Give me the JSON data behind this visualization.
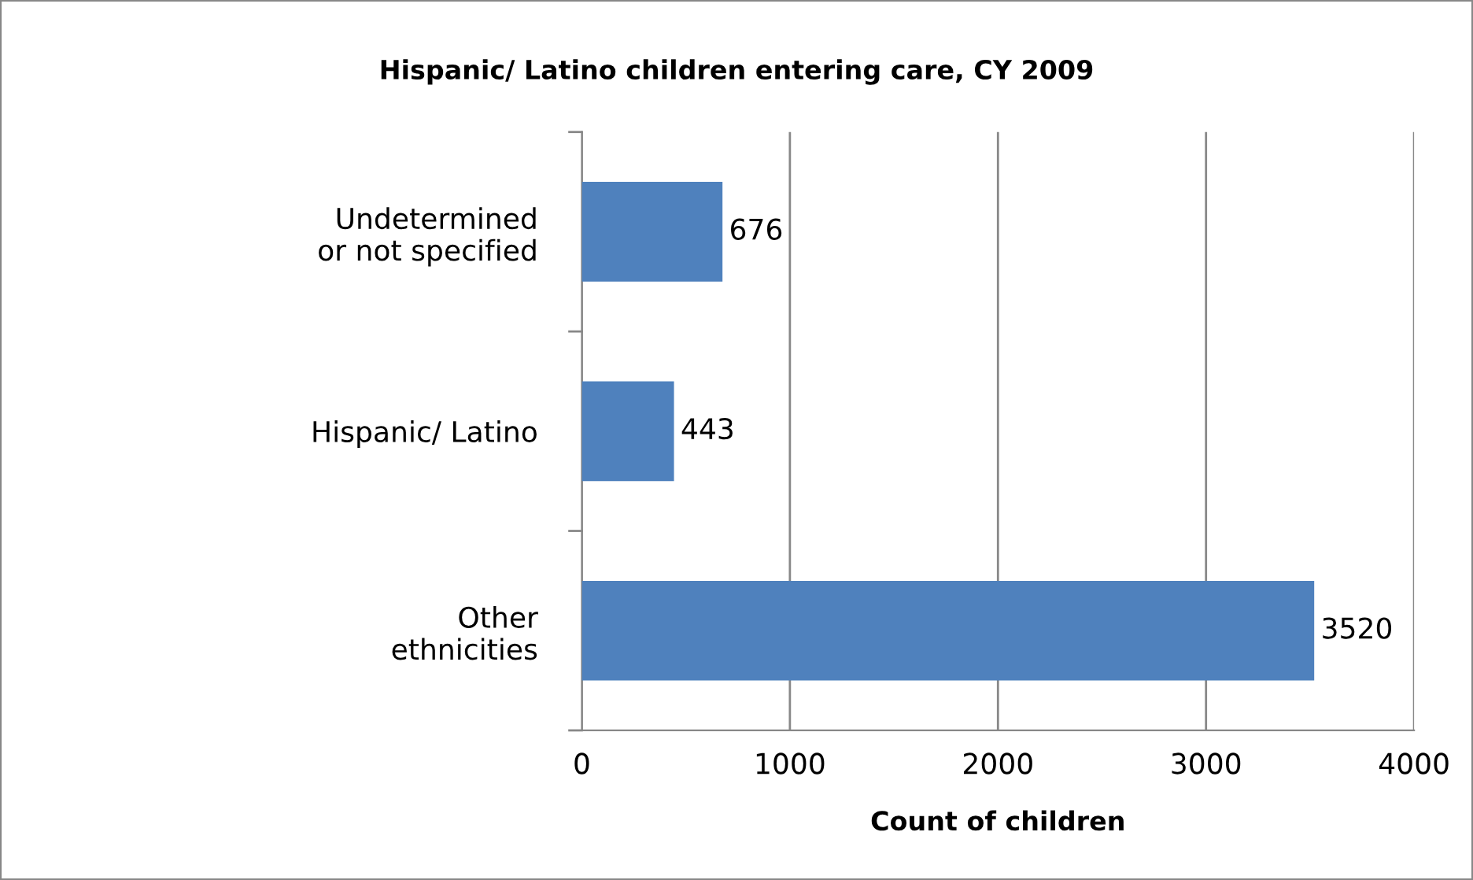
{
  "chart_data": {
    "type": "bar",
    "orientation": "horizontal",
    "title": "Hispanic/ Latino children entering care, CY 2009",
    "xlabel": "Count of children",
    "categories": [
      "Undetermined\nor not specified",
      "Hispanic/ Latino",
      "Other\nethnicities"
    ],
    "values": [
      676,
      443,
      3520
    ],
    "color": "#4f81bd",
    "xlim": [
      0,
      4000
    ],
    "xticks": [
      0,
      1000,
      2000,
      3000,
      4000
    ],
    "grid": "x",
    "data_labels": true,
    "legend": false
  }
}
